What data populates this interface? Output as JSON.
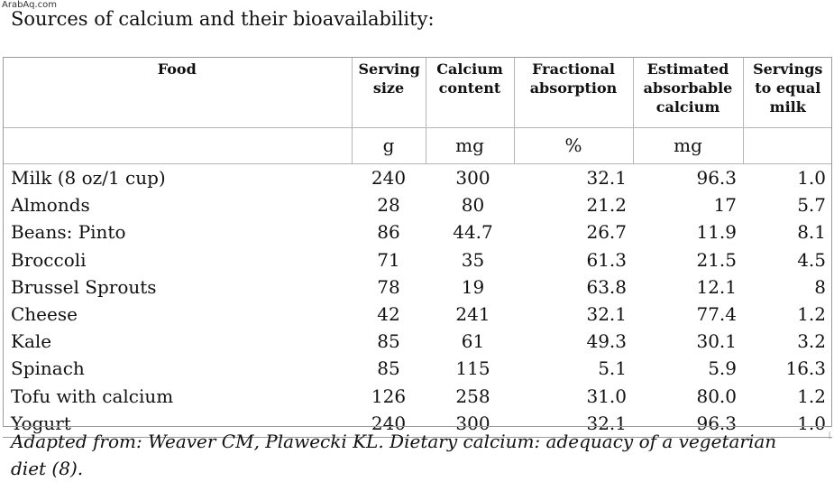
{
  "watermark": "ArabAq.com",
  "title": "Sources of calcium and their bioavailability:",
  "table": {
    "headers": [
      "Food",
      "Serving size",
      "Calcium content",
      "Fractional absorption",
      "Estimated absorbable calcium",
      "Servings to equal milk"
    ],
    "units": [
      "",
      "g",
      "mg",
      "%",
      "mg",
      ""
    ],
    "rows": [
      [
        "Milk (8 oz/1 cup)",
        "240",
        "300",
        "32.1",
        "96.3",
        "1.0"
      ],
      [
        "Almonds",
        "28",
        "80",
        "21.2",
        "17",
        "5.7"
      ],
      [
        "Beans: Pinto",
        "86",
        "44.7",
        "26.7",
        "11.9",
        "8.1"
      ],
      [
        "Broccoli",
        "71",
        "35",
        "61.3",
        "21.5",
        "4.5"
      ],
      [
        "Brussel Sprouts",
        "78",
        "19",
        "63.8",
        "12.1",
        "8"
      ],
      [
        "Cheese",
        "42",
        "241",
        "32.1",
        "77.4",
        "1.2"
      ],
      [
        "Kale",
        "85",
        "61",
        "49.3",
        "30.1",
        "3.2"
      ],
      [
        "Spinach",
        "85",
        "115",
        "5.1",
        "5.9",
        "16.3"
      ],
      [
        "Tofu with calcium",
        "126",
        "258",
        "31.0",
        "80.0",
        "1.2"
      ],
      [
        "Yogurt",
        "240",
        "300",
        "32.1",
        "96.3",
        "1.0"
      ]
    ]
  },
  "citation": "Adapted from: Weaver CM, Plawecki KL. Dietary calcium: adequacy of a vegetarian diet (8)."
}
